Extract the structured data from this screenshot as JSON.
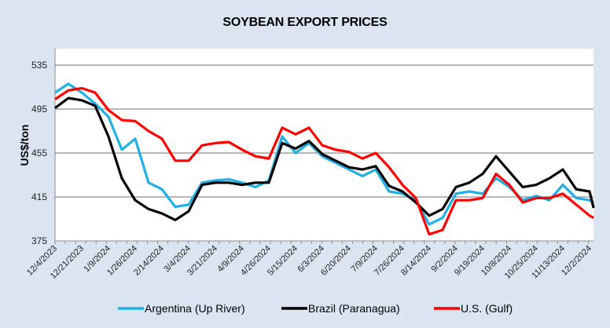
{
  "chart_data": {
    "type": "line",
    "title": "SOYBEAN EXPORT PRICES",
    "xlabel": "",
    "ylabel": "US$/ton",
    "ylim": [
      375,
      555
    ],
    "yticks": [
      375,
      415,
      455,
      495,
      535
    ],
    "grid": true,
    "legend_position": "bottom",
    "x_tick_labels": [
      "12/4/2023",
      "12/21/2023",
      "1/9/2024",
      "1/26/2024",
      "2/14/2024",
      "3/4/2024",
      "3/21/2024",
      "4/9/2024",
      "4/26/2024",
      "5/15/2024",
      "6/3/2024",
      "6/20/2024",
      "7/9/2024",
      "7/26/2024",
      "8/14/2024",
      "9/2/2024",
      "9/19/2024",
      "10/8/2024",
      "10/25/2024",
      "11/13/2024",
      "12/2/2024"
    ],
    "x_positions_in_label_units": [
      0,
      0.5,
      1,
      1.5,
      2,
      2.5,
      3,
      3.5,
      4,
      4.5,
      5,
      5.5,
      6,
      6.5,
      7,
      7.5,
      8,
      8.5,
      9,
      9.5,
      10,
      10.5,
      11,
      11.5,
      12,
      12.5,
      13,
      13.5,
      14,
      14.5,
      15,
      15.5,
      16,
      16.5,
      17,
      17.5,
      18,
      18.5,
      19,
      19.5,
      20,
      20.15
    ],
    "series": [
      {
        "name": "Argentina (Up River)",
        "color": "#1fb0e8",
        "values": [
          510,
          518,
          510,
          500,
          488,
          458,
          468,
          428,
          422,
          406,
          408,
          428,
          430,
          431,
          428,
          424,
          430,
          470,
          455,
          464,
          452,
          446,
          440,
          434,
          440,
          420,
          418,
          412,
          390,
          396,
          418,
          420,
          418,
          432,
          424,
          412,
          416,
          412,
          426,
          414,
          412,
          410
        ]
      },
      {
        "name": "Brazil (Paranagua)",
        "color": "#000000",
        "values": [
          496,
          505,
          503,
          498,
          470,
          432,
          412,
          404,
          400,
          394,
          402,
          426,
          428,
          428,
          426,
          428,
          428,
          464,
          459,
          466,
          454,
          448,
          442,
          440,
          443,
          425,
          420,
          410,
          398,
          404,
          424,
          428,
          436,
          452,
          438,
          424,
          426,
          432,
          440,
          422,
          420,
          405
        ]
      },
      {
        "name": "U.S. (Gulf)",
        "color": "#ff0000",
        "values": [
          504,
          512,
          514,
          510,
          494,
          485,
          484,
          475,
          468,
          448,
          448,
          462,
          464,
          465,
          458,
          452,
          450,
          478,
          472,
          478,
          462,
          458,
          456,
          450,
          455,
          442,
          426,
          414,
          381,
          385,
          412,
          412,
          414,
          436,
          426,
          410,
          414,
          414,
          418,
          408,
          398,
          396
        ]
      }
    ]
  }
}
